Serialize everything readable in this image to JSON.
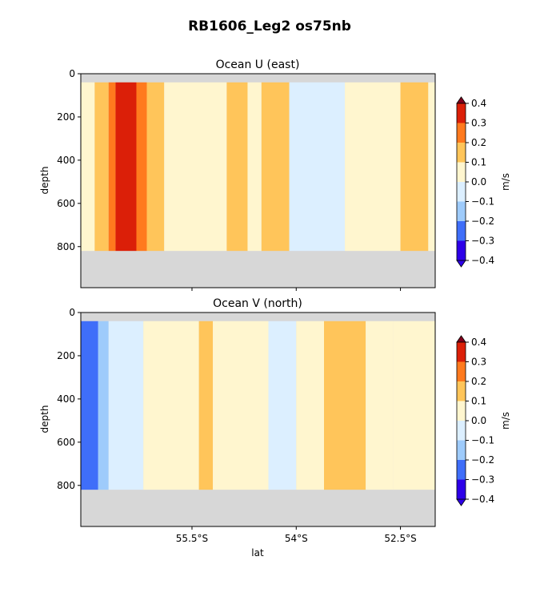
{
  "figure": {
    "title": "RB1606_Leg2 os75nb"
  },
  "chart_data": [
    {
      "type": "heatmap",
      "title": "Ocean U (east)",
      "ylabel": "depth",
      "xlabel": "",
      "x_range_deg_lat": [
        -57.1,
        -52.0
      ],
      "ylim": [
        990,
        0
      ],
      "yticks": [
        0,
        200,
        400,
        600,
        800
      ],
      "ytick_labels": [
        "0",
        "200",
        "400",
        "600",
        "800"
      ],
      "xticks": [
        -55.5,
        -54.0,
        -52.5
      ],
      "xtick_labels": [],
      "colorbar": {
        "label": "m/s",
        "levels": [
          -0.4,
          -0.3,
          -0.2,
          -0.1,
          0.0,
          0.1,
          0.2,
          0.3,
          0.4
        ],
        "tick_labels": [
          "−0.4",
          "−0.3",
          "−0.2",
          "−0.1",
          "0.0",
          "0.1",
          "0.2",
          "0.3",
          "0.4"
        ],
        "colors": [
          "#2d00e8",
          "#3f6ef9",
          "#9ecbfb",
          "#dcefff",
          "#fff6cf",
          "#ffc55a",
          "#ff7a1e",
          "#db1f08",
          "#80001c"
        ]
      },
      "no_data_color": "#d7d7d7",
      "column_bands": [
        {
          "lat_from": -57.1,
          "lat_to": -56.9,
          "u": 0.06
        },
        {
          "lat_from": -56.9,
          "lat_to": -56.7,
          "u": 0.16
        },
        {
          "lat_from": -56.7,
          "lat_to": -56.6,
          "u": 0.26
        },
        {
          "lat_from": -56.6,
          "lat_to": -56.3,
          "u": 0.36
        },
        {
          "lat_from": -56.3,
          "lat_to": -56.15,
          "u": 0.26
        },
        {
          "lat_from": -56.15,
          "lat_to": -55.9,
          "u": 0.16
        },
        {
          "lat_from": -55.9,
          "lat_to": -55.0,
          "u": 0.05
        },
        {
          "lat_from": -55.0,
          "lat_to": -54.7,
          "u": 0.15
        },
        {
          "lat_from": -54.7,
          "lat_to": -54.5,
          "u": 0.05
        },
        {
          "lat_from": -54.5,
          "lat_to": -54.1,
          "u": 0.15
        },
        {
          "lat_from": -54.1,
          "lat_to": -53.3,
          "u": -0.05
        },
        {
          "lat_from": -53.3,
          "lat_to": -52.5,
          "u": 0.05
        },
        {
          "lat_from": -52.5,
          "lat_to": -52.1,
          "u": 0.15
        },
        {
          "lat_from": -52.1,
          "lat_to": -52.0,
          "u": 0.05
        }
      ]
    },
    {
      "type": "heatmap",
      "title": "Ocean V (north)",
      "ylabel": "depth",
      "xlabel": "lat",
      "x_range_deg_lat": [
        -57.1,
        -52.0
      ],
      "ylim": [
        990,
        0
      ],
      "yticks": [
        0,
        200,
        400,
        600,
        800
      ],
      "ytick_labels": [
        "0",
        "200",
        "400",
        "600",
        "800"
      ],
      "xticks": [
        -55.5,
        -54.0,
        -52.5
      ],
      "xtick_labels": [
        "55.5°S",
        "54°S",
        "52.5°S"
      ],
      "colorbar": {
        "label": "m/s",
        "levels": [
          -0.4,
          -0.3,
          -0.2,
          -0.1,
          0.0,
          0.1,
          0.2,
          0.3,
          0.4
        ],
        "tick_labels": [
          "−0.4",
          "−0.3",
          "−0.2",
          "−0.1",
          "0.0",
          "0.1",
          "0.2",
          "0.3",
          "0.4"
        ],
        "colors": [
          "#2d00e8",
          "#3f6ef9",
          "#9ecbfb",
          "#dcefff",
          "#fff6cf",
          "#ffc55a",
          "#ff7a1e",
          "#db1f08",
          "#80001c"
        ]
      },
      "no_data_color": "#d7d7d7",
      "column_bands": [
        {
          "lat_from": -57.1,
          "lat_to": -56.85,
          "v": -0.25
        },
        {
          "lat_from": -56.85,
          "lat_to": -56.7,
          "v": -0.15
        },
        {
          "lat_from": -56.7,
          "lat_to": -56.2,
          "v": -0.05
        },
        {
          "lat_from": -56.2,
          "lat_to": -55.4,
          "v": 0.05
        },
        {
          "lat_from": -55.4,
          "lat_to": -55.2,
          "v": 0.15
        },
        {
          "lat_from": -55.2,
          "lat_to": -54.4,
          "v": 0.05
        },
        {
          "lat_from": -54.4,
          "lat_to": -54.0,
          "v": -0.05
        },
        {
          "lat_from": -54.0,
          "lat_to": -53.6,
          "v": 0.05
        },
        {
          "lat_from": -53.6,
          "lat_to": -53.0,
          "v": 0.15
        },
        {
          "lat_from": -53.0,
          "lat_to": -52.6,
          "v": 0.05
        },
        {
          "lat_from": -52.6,
          "lat_to": -52.0,
          "v": 0.05
        }
      ]
    }
  ]
}
